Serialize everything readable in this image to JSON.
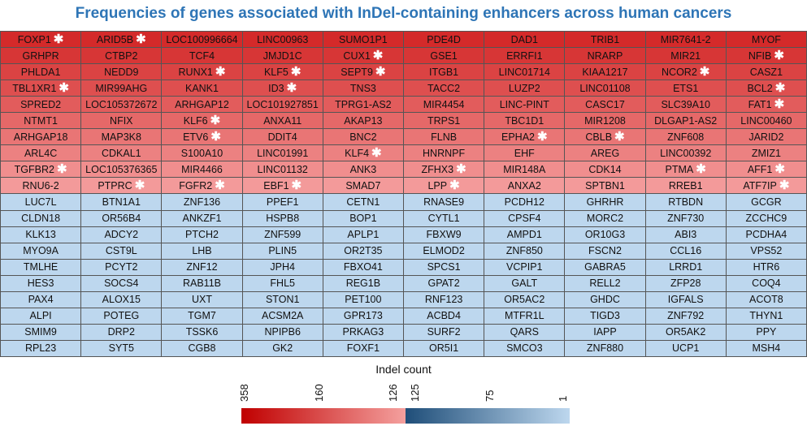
{
  "chart_data": {
    "type": "heatmap",
    "title": "Frequencies of genes associated with InDel-containing enhancers across human cancers",
    "rows": [
      [
        {
          "g": "FOXP1",
          "s": true
        },
        {
          "g": "ARID5B",
          "s": true
        },
        {
          "g": "LOC100996664"
        },
        {
          "g": "LINC00963"
        },
        {
          "g": "SUMO1P1"
        },
        {
          "g": "PDE4D"
        },
        {
          "g": "DAD1"
        },
        {
          "g": "TRIB1"
        },
        {
          "g": "MIR7641-2"
        },
        {
          "g": "MYOF"
        }
      ],
      [
        {
          "g": "GRHPR"
        },
        {
          "g": "CTBP2"
        },
        {
          "g": "TCF4"
        },
        {
          "g": "JMJD1C"
        },
        {
          "g": "CUX1",
          "s": true
        },
        {
          "g": "GSE1"
        },
        {
          "g": "ERRFI1"
        },
        {
          "g": "NRARP"
        },
        {
          "g": "MIR21"
        },
        {
          "g": "NFIB",
          "s": true
        }
      ],
      [
        {
          "g": "PHLDA1"
        },
        {
          "g": "NEDD9"
        },
        {
          "g": "RUNX1",
          "s": true
        },
        {
          "g": "KLF5",
          "s": true
        },
        {
          "g": "SEPT9",
          "s": true
        },
        {
          "g": "ITGB1"
        },
        {
          "g": "LINC01714"
        },
        {
          "g": "KIAA1217"
        },
        {
          "g": "NCOR2",
          "s": true
        },
        {
          "g": "CASZ1"
        }
      ],
      [
        {
          "g": "TBL1XR1",
          "s": true
        },
        {
          "g": "MIR99AHG"
        },
        {
          "g": "KANK1"
        },
        {
          "g": "ID3",
          "s": true
        },
        {
          "g": "TNS3"
        },
        {
          "g": "TACC2"
        },
        {
          "g": "LUZP2"
        },
        {
          "g": "LINC01108"
        },
        {
          "g": "ETS1"
        },
        {
          "g": "BCL2",
          "s": true
        }
      ],
      [
        {
          "g": "SPRED2"
        },
        {
          "g": "LOC105372672"
        },
        {
          "g": "ARHGAP12"
        },
        {
          "g": "LOC101927851"
        },
        {
          "g": "TPRG1-AS2"
        },
        {
          "g": "MIR4454"
        },
        {
          "g": "LINC-PINT"
        },
        {
          "g": "CASC17"
        },
        {
          "g": "SLC39A10"
        },
        {
          "g": "FAT1",
          "s": true
        }
      ],
      [
        {
          "g": "NTMT1"
        },
        {
          "g": "NFIX"
        },
        {
          "g": "KLF6",
          "s": true
        },
        {
          "g": "ANXA11"
        },
        {
          "g": "AKAP13"
        },
        {
          "g": "TRPS1"
        },
        {
          "g": "TBC1D1"
        },
        {
          "g": "MIR1208"
        },
        {
          "g": "DLGAP1-AS2"
        },
        {
          "g": "LINC00460"
        }
      ],
      [
        {
          "g": "ARHGAP18"
        },
        {
          "g": "MAP3K8"
        },
        {
          "g": "ETV6",
          "s": true
        },
        {
          "g": "DDIT4"
        },
        {
          "g": "BNC2"
        },
        {
          "g": "FLNB"
        },
        {
          "g": "EPHA2",
          "s": true
        },
        {
          "g": "CBLB",
          "s": true
        },
        {
          "g": "ZNF608"
        },
        {
          "g": "JARID2"
        }
      ],
      [
        {
          "g": "ARL4C"
        },
        {
          "g": "CDKAL1"
        },
        {
          "g": "S100A10"
        },
        {
          "g": "LINC01991"
        },
        {
          "g": "KLF4",
          "s": true
        },
        {
          "g": "HNRNPF"
        },
        {
          "g": "EHF"
        },
        {
          "g": "AREG"
        },
        {
          "g": "LINC00392"
        },
        {
          "g": "ZMIZ1"
        }
      ],
      [
        {
          "g": "TGFBR2",
          "s": true
        },
        {
          "g": "LOC105376365"
        },
        {
          "g": "MIR4466"
        },
        {
          "g": "LINC01132"
        },
        {
          "g": "ANK3"
        },
        {
          "g": "ZFHX3",
          "s": true
        },
        {
          "g": "MIR148A"
        },
        {
          "g": "CDK14"
        },
        {
          "g": "PTMA",
          "s": true
        },
        {
          "g": "AFF1",
          "s": true
        }
      ],
      [
        {
          "g": "RNU6-2"
        },
        {
          "g": "PTPRC",
          "s": true
        },
        {
          "g": "FGFR2",
          "s": true
        },
        {
          "g": "EBF1",
          "s": true
        },
        {
          "g": "SMAD7"
        },
        {
          "g": "LPP",
          "s": true
        },
        {
          "g": "ANXA2"
        },
        {
          "g": "SPTBN1"
        },
        {
          "g": "RREB1"
        },
        {
          "g": "ATF7IP",
          "s": true
        }
      ],
      [
        {
          "g": "LUC7L"
        },
        {
          "g": "BTN1A1"
        },
        {
          "g": "ZNF136"
        },
        {
          "g": "PPEF1"
        },
        {
          "g": "CETN1"
        },
        {
          "g": "RNASE9"
        },
        {
          "g": "PCDH12"
        },
        {
          "g": "GHRHR"
        },
        {
          "g": "RTBDN"
        },
        {
          "g": "GCGR"
        }
      ],
      [
        {
          "g": "CLDN18"
        },
        {
          "g": "OR56B4"
        },
        {
          "g": "ANKZF1"
        },
        {
          "g": "HSPB8"
        },
        {
          "g": "BOP1"
        },
        {
          "g": "CYTL1"
        },
        {
          "g": "CPSF4"
        },
        {
          "g": "MORC2"
        },
        {
          "g": "ZNF730"
        },
        {
          "g": "ZCCHC9"
        }
      ],
      [
        {
          "g": "KLK13"
        },
        {
          "g": "ADCY2"
        },
        {
          "g": "PTCH2"
        },
        {
          "g": "ZNF599"
        },
        {
          "g": "APLP1"
        },
        {
          "g": "FBXW9"
        },
        {
          "g": "AMPD1"
        },
        {
          "g": "OR10G3"
        },
        {
          "g": "ABI3"
        },
        {
          "g": "PCDHA4"
        }
      ],
      [
        {
          "g": "MYO9A"
        },
        {
          "g": "CST9L"
        },
        {
          "g": "LHB"
        },
        {
          "g": "PLIN5"
        },
        {
          "g": "OR2T35"
        },
        {
          "g": "ELMOD2"
        },
        {
          "g": "ZNF850"
        },
        {
          "g": "FSCN2"
        },
        {
          "g": "CCL16"
        },
        {
          "g": "VPS52"
        }
      ],
      [
        {
          "g": "TMLHE"
        },
        {
          "g": "PCYT2"
        },
        {
          "g": "ZNF12"
        },
        {
          "g": "JPH4"
        },
        {
          "g": "FBXO41"
        },
        {
          "g": "SPCS1"
        },
        {
          "g": "VCPIP1"
        },
        {
          "g": "GABRA5"
        },
        {
          "g": "LRRD1"
        },
        {
          "g": "HTR6"
        }
      ],
      [
        {
          "g": "HES3"
        },
        {
          "g": "SOCS4"
        },
        {
          "g": "RAB11B"
        },
        {
          "g": "FHL5"
        },
        {
          "g": "REG1B"
        },
        {
          "g": "GPAT2"
        },
        {
          "g": "GALT"
        },
        {
          "g": "RELL2"
        },
        {
          "g": "ZFP28"
        },
        {
          "g": "COQ4"
        }
      ],
      [
        {
          "g": "PAX4"
        },
        {
          "g": "ALOX15"
        },
        {
          "g": "UXT"
        },
        {
          "g": "STON1"
        },
        {
          "g": "PET100"
        },
        {
          "g": "RNF123"
        },
        {
          "g": "OR5AC2"
        },
        {
          "g": "GHDC"
        },
        {
          "g": "IGFALS"
        },
        {
          "g": "ACOT8"
        }
      ],
      [
        {
          "g": "ALPI"
        },
        {
          "g": "POTEG"
        },
        {
          "g": "TGM7"
        },
        {
          "g": "ACSM2A"
        },
        {
          "g": "GPR173"
        },
        {
          "g": "ACBD4"
        },
        {
          "g": "MTFR1L"
        },
        {
          "g": "TIGD3"
        },
        {
          "g": "ZNF792"
        },
        {
          "g": "THYN1"
        }
      ],
      [
        {
          "g": "SMIM9"
        },
        {
          "g": "DRP2"
        },
        {
          "g": "TSSK6"
        },
        {
          "g": "NPIPB6"
        },
        {
          "g": "PRKAG3"
        },
        {
          "g": "SURF2"
        },
        {
          "g": "QARS"
        },
        {
          "g": "IAPP"
        },
        {
          "g": "OR5AK2"
        },
        {
          "g": "PPY"
        }
      ],
      [
        {
          "g": "RPL23"
        },
        {
          "g": "SYT5"
        },
        {
          "g": "CGB8"
        },
        {
          "g": "GK2"
        },
        {
          "g": "FOXF1"
        },
        {
          "g": "OR5I1"
        },
        {
          "g": "SMCO3"
        },
        {
          "g": "ZNF880"
        },
        {
          "g": "UCP1"
        },
        {
          "g": "MSH4"
        }
      ]
    ],
    "legend": {
      "title": "Indel count",
      "red_scale": {
        "ticks": [
          "358",
          "160",
          "126"
        ],
        "range": [
          358,
          126
        ],
        "colors": [
          "#c00000",
          "#f4a09e"
        ]
      },
      "blue_scale": {
        "ticks": [
          "125",
          "75",
          "1"
        ],
        "range": [
          125,
          1
        ],
        "colors": [
          "#1f4e79",
          "#bdd7ee"
        ]
      }
    },
    "star_marker": "✱",
    "colors": {
      "title": "#2e75b6",
      "red_top": "#d42a2a",
      "red_bottom": "#f39a9a",
      "blue_cell": "#bdd7ee",
      "border": "#555555"
    }
  }
}
